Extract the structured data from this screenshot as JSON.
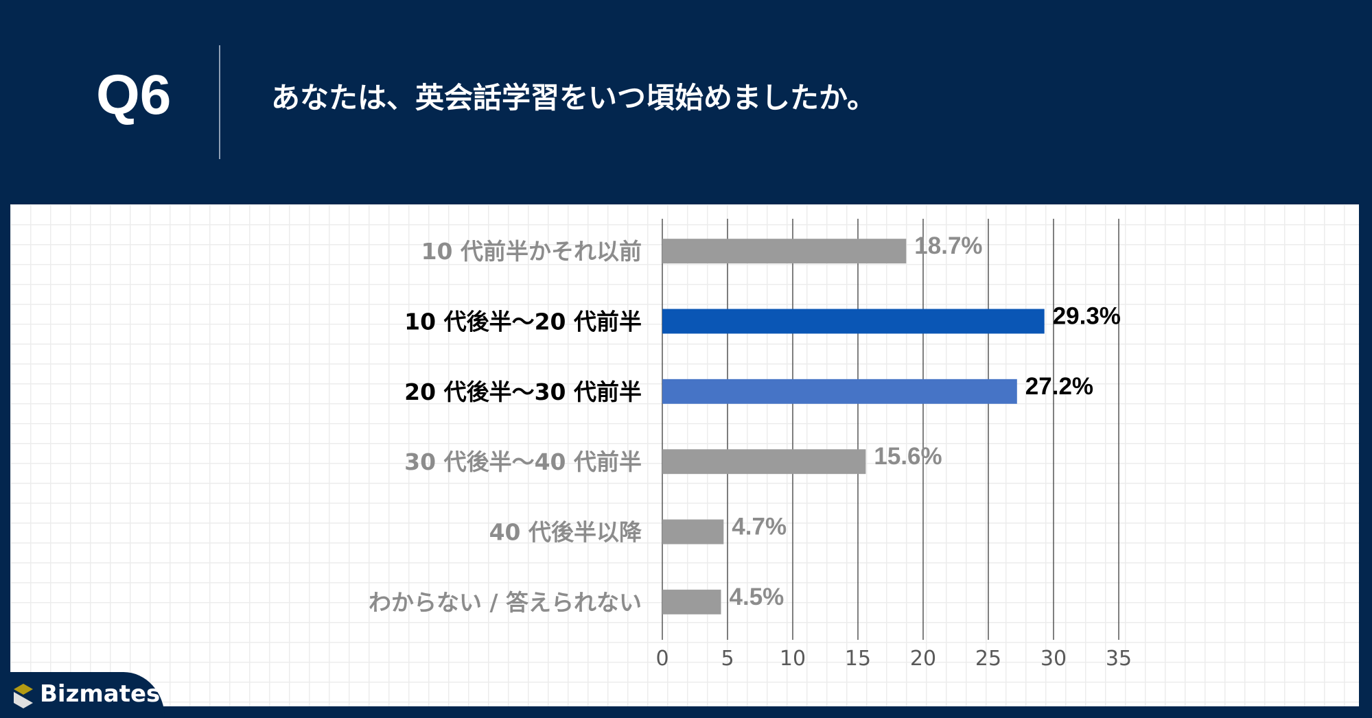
{
  "header": {
    "question": "Q6",
    "title": "あなたは、英会話学習をいつ頃始めましたか。"
  },
  "brand": {
    "name": "Bizmates"
  },
  "chart_data": {
    "type": "bar",
    "orientation": "horizontal",
    "categories": [
      "10 代前半かそれ以前",
      "10 代後半〜20 代前半",
      "20 代後半〜30 代前半",
      "30 代後半〜40 代前半",
      "40 代後半以降",
      "わからない / 答えられない"
    ],
    "values": [
      18.7,
      29.3,
      27.2,
      15.6,
      4.7,
      4.5
    ],
    "data_labels": [
      "18.7%",
      "29.3%",
      "27.2%",
      "15.6%",
      "4.7%",
      "4.5%"
    ],
    "bar_colors": [
      "#9b9b9b",
      "#0a56b5",
      "#4674c6",
      "#9b9b9b",
      "#9b9b9b",
      "#9b9b9b"
    ],
    "label_colors": [
      "#8c8c8c",
      "#000000",
      "#000000",
      "#8c8c8c",
      "#8c8c8c",
      "#8c8c8c"
    ],
    "xlim": [
      0,
      35
    ],
    "xticks": [
      0,
      5,
      10,
      15,
      20,
      25,
      30,
      35
    ],
    "grid": true
  }
}
